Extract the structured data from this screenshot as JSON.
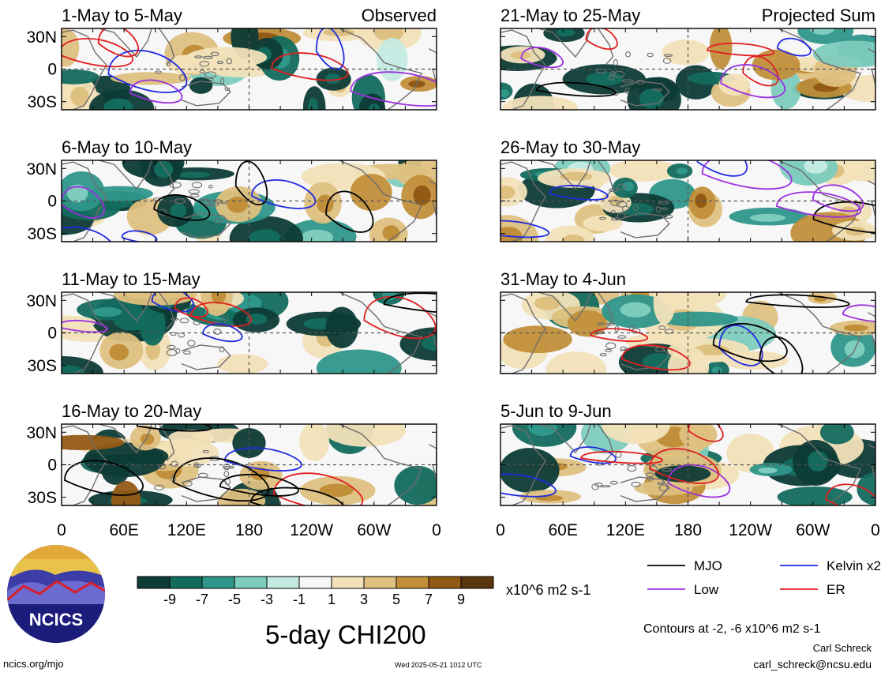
{
  "title": "5-day CHI200",
  "panels": [
    {
      "period": "1-May to 5-May",
      "corner": "Observed",
      "column": "left",
      "row": 0
    },
    {
      "period": "6-May to 10-May",
      "corner": "",
      "column": "left",
      "row": 1
    },
    {
      "period": "11-May to 15-May",
      "corner": "",
      "column": "left",
      "row": 2
    },
    {
      "period": "16-May to 20-May",
      "corner": "",
      "column": "left",
      "row": 3
    },
    {
      "period": "21-May to 25-May",
      "corner": "Projected Sum",
      "column": "right",
      "row": 0
    },
    {
      "period": "26-May to 30-May",
      "corner": "",
      "column": "right",
      "row": 1
    },
    {
      "period": "31-May to 4-Jun",
      "corner": "",
      "column": "right",
      "row": 2
    },
    {
      "period": "5-Jun to 9-Jun",
      "corner": "",
      "column": "right",
      "row": 3
    }
  ],
  "lat_labels": [
    "30N",
    "0",
    "30S"
  ],
  "lon_labels": [
    "0",
    "60E",
    "120E",
    "180",
    "120W",
    "60W",
    "0"
  ],
  "colorbar": {
    "labels": [
      "-9",
      "-7",
      "-5",
      "-3",
      "-1",
      "1",
      "3",
      "5",
      "7",
      "9"
    ],
    "colors": [
      "#0d3b36",
      "#136b5e",
      "#2f968a",
      "#7dccbe",
      "#c4ebe2",
      "#f7f7f7",
      "#f2e2b9",
      "#dec080",
      "#c18f3a",
      "#935a16",
      "#5b350d"
    ],
    "units": "x10^6 m2 s-1"
  },
  "legend": [
    {
      "label": "MJO",
      "color": "#000000"
    },
    {
      "label": "Kelvin x2",
      "color": "#1f2be0"
    },
    {
      "label": "Low",
      "color": "#9b30e0"
    },
    {
      "label": "ER",
      "color": "#e01f1f"
    }
  ],
  "contours_note": "Contours at -2, -6 x10^6 m2 s-1",
  "logo_text": "NCICS",
  "footer": {
    "url": "ncics.org/mjo",
    "timestamp": "Wed 2025-05-21 1012 UTC",
    "author": "Carl Schreck",
    "email": "carl_schreck@ncsu.edu"
  }
}
